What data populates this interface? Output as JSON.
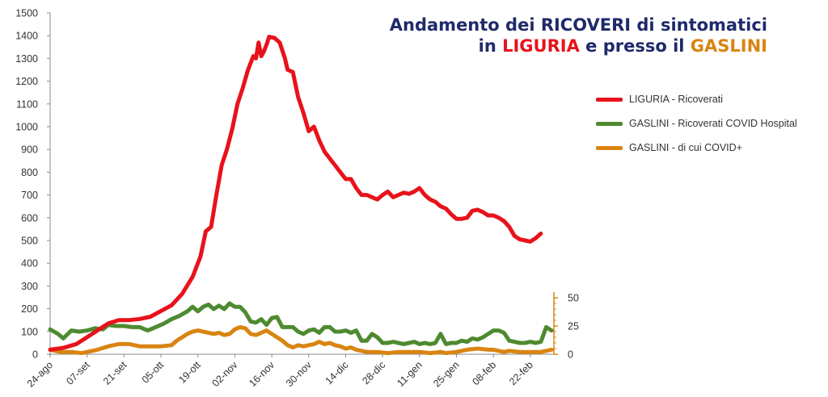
{
  "title": {
    "line1": "Andamento dei RICOVERI di sintomatici",
    "line2_a": "in ",
    "line2_b": "LIGURIA",
    "line2_c": " e presso il ",
    "line2_d": "GASLINI"
  },
  "colors": {
    "liguria": "#e8121b",
    "gaslini": "#4e8a2f",
    "covid": "#d98512",
    "title": "#1f2a6b"
  },
  "chart_data": {
    "type": "line",
    "title": "Andamento dei RICOVERI di sintomatici in LIGURIA e presso il GASLINI",
    "x_tick_labels": [
      "24-ago",
      "07-set",
      "21-set",
      "05-ott",
      "19-ott",
      "02-nov",
      "16-nov",
      "30-nov",
      "14-dic",
      "28-dic",
      "11-gen",
      "25-gen",
      "08-feb",
      "22-feb"
    ],
    "x_tick_days": [
      0,
      14,
      28,
      42,
      56,
      70,
      84,
      98,
      112,
      126,
      140,
      154,
      168,
      182
    ],
    "x_range": [
      0,
      190
    ],
    "left_axis": {
      "ylim": [
        0,
        1500
      ],
      "ticks": [
        0,
        100,
        200,
        300,
        400,
        500,
        600,
        700,
        800,
        900,
        1000,
        1100,
        1200,
        1300,
        1400,
        1500
      ]
    },
    "right_axis": {
      "ylim": [
        0,
        55
      ],
      "ticks": [
        0,
        25,
        50
      ]
    },
    "legend_position": "right",
    "series": [
      {
        "name": "LIGURIA - Ricoverati",
        "axis": "left",
        "color": "#e8121b",
        "points": [
          [
            0,
            20
          ],
          [
            5,
            28
          ],
          [
            10,
            45
          ],
          [
            14,
            75
          ],
          [
            18,
            105
          ],
          [
            22,
            135
          ],
          [
            26,
            150
          ],
          [
            30,
            150
          ],
          [
            34,
            155
          ],
          [
            38,
            165
          ],
          [
            42,
            190
          ],
          [
            46,
            215
          ],
          [
            50,
            265
          ],
          [
            54,
            340
          ],
          [
            57,
            430
          ],
          [
            59,
            540
          ],
          [
            61,
            560
          ],
          [
            63,
            700
          ],
          [
            65,
            830
          ],
          [
            67,
            900
          ],
          [
            69,
            990
          ],
          [
            71,
            1100
          ],
          [
            73,
            1170
          ],
          [
            75,
            1250
          ],
          [
            77,
            1310
          ],
          [
            78,
            1300
          ],
          [
            79,
            1370
          ],
          [
            80,
            1310
          ],
          [
            81,
            1330
          ],
          [
            82,
            1360
          ],
          [
            83,
            1395
          ],
          [
            85,
            1390
          ],
          [
            87,
            1370
          ],
          [
            89,
            1300
          ],
          [
            90,
            1250
          ],
          [
            92,
            1240
          ],
          [
            94,
            1130
          ],
          [
            96,
            1060
          ],
          [
            98,
            980
          ],
          [
            100,
            1000
          ],
          [
            102,
            940
          ],
          [
            104,
            890
          ],
          [
            106,
            860
          ],
          [
            108,
            830
          ],
          [
            110,
            800
          ],
          [
            112,
            770
          ],
          [
            114,
            770
          ],
          [
            116,
            730
          ],
          [
            118,
            700
          ],
          [
            120,
            700
          ],
          [
            122,
            690
          ],
          [
            124,
            680
          ],
          [
            126,
            700
          ],
          [
            128,
            715
          ],
          [
            130,
            690
          ],
          [
            132,
            700
          ],
          [
            134,
            710
          ],
          [
            136,
            705
          ],
          [
            138,
            715
          ],
          [
            140,
            730
          ],
          [
            142,
            700
          ],
          [
            144,
            680
          ],
          [
            146,
            670
          ],
          [
            148,
            650
          ],
          [
            150,
            640
          ],
          [
            152,
            615
          ],
          [
            154,
            595
          ],
          [
            156,
            595
          ],
          [
            158,
            600
          ],
          [
            160,
            630
          ],
          [
            162,
            635
          ],
          [
            164,
            625
          ],
          [
            166,
            610
          ],
          [
            168,
            610
          ],
          [
            170,
            600
          ],
          [
            172,
            585
          ],
          [
            174,
            560
          ],
          [
            176,
            520
          ],
          [
            178,
            505
          ],
          [
            180,
            500
          ],
          [
            182,
            495
          ],
          [
            184,
            510
          ],
          [
            186,
            530
          ]
        ]
      },
      {
        "name": "GASLINI - Ricoverati COVID Hospital",
        "axis": "right",
        "color": "#4e8a2f",
        "points": [
          [
            0,
            22
          ],
          [
            3,
            18
          ],
          [
            5,
            14
          ],
          [
            8,
            21
          ],
          [
            11,
            20
          ],
          [
            14,
            21
          ],
          [
            17,
            23
          ],
          [
            20,
            22
          ],
          [
            22,
            26
          ],
          [
            25,
            25
          ],
          [
            28,
            25
          ],
          [
            31,
            24
          ],
          [
            34,
            24
          ],
          [
            37,
            21
          ],
          [
            40,
            24
          ],
          [
            43,
            27
          ],
          [
            46,
            31
          ],
          [
            49,
            34
          ],
          [
            52,
            38
          ],
          [
            54,
            42
          ],
          [
            56,
            38
          ],
          [
            58,
            42
          ],
          [
            60,
            44
          ],
          [
            62,
            40
          ],
          [
            64,
            43
          ],
          [
            66,
            40
          ],
          [
            68,
            45
          ],
          [
            70,
            42
          ],
          [
            72,
            42
          ],
          [
            74,
            37
          ],
          [
            76,
            29
          ],
          [
            78,
            28
          ],
          [
            80,
            31
          ],
          [
            82,
            26
          ],
          [
            84,
            32
          ],
          [
            86,
            33
          ],
          [
            88,
            24
          ],
          [
            90,
            24
          ],
          [
            92,
            24
          ],
          [
            94,
            20
          ],
          [
            96,
            18
          ],
          [
            98,
            21
          ],
          [
            100,
            22
          ],
          [
            102,
            19
          ],
          [
            104,
            24
          ],
          [
            106,
            24
          ],
          [
            108,
            20
          ],
          [
            110,
            20
          ],
          [
            112,
            21
          ],
          [
            114,
            19
          ],
          [
            116,
            21
          ],
          [
            118,
            12
          ],
          [
            120,
            12
          ],
          [
            122,
            18
          ],
          [
            124,
            15
          ],
          [
            126,
            10
          ],
          [
            128,
            10
          ],
          [
            130,
            11
          ],
          [
            132,
            10
          ],
          [
            134,
            9
          ],
          [
            136,
            10
          ],
          [
            138,
            11
          ],
          [
            140,
            9
          ],
          [
            142,
            10
          ],
          [
            144,
            9
          ],
          [
            146,
            10
          ],
          [
            148,
            18
          ],
          [
            150,
            9
          ],
          [
            152,
            10
          ],
          [
            154,
            10
          ],
          [
            156,
            12
          ],
          [
            158,
            11
          ],
          [
            160,
            14
          ],
          [
            162,
            13
          ],
          [
            164,
            15
          ],
          [
            166,
            18
          ],
          [
            168,
            21
          ],
          [
            170,
            21
          ],
          [
            172,
            19
          ],
          [
            174,
            12
          ],
          [
            176,
            11
          ],
          [
            178,
            10
          ],
          [
            180,
            10
          ],
          [
            182,
            11
          ],
          [
            184,
            10
          ],
          [
            186,
            11
          ],
          [
            188,
            24
          ],
          [
            190,
            21
          ]
        ]
      },
      {
        "name": "GASLINI - di cui COVID+",
        "axis": "right",
        "color": "#d98512",
        "points": [
          [
            0,
            4
          ],
          [
            4,
            2
          ],
          [
            8,
            2
          ],
          [
            12,
            1
          ],
          [
            14,
            2
          ],
          [
            18,
            4
          ],
          [
            22,
            7
          ],
          [
            26,
            9
          ],
          [
            30,
            9
          ],
          [
            34,
            7
          ],
          [
            38,
            7
          ],
          [
            42,
            7
          ],
          [
            46,
            8
          ],
          [
            48,
            12
          ],
          [
            50,
            15
          ],
          [
            52,
            18
          ],
          [
            54,
            20
          ],
          [
            56,
            21
          ],
          [
            58,
            20
          ],
          [
            60,
            19
          ],
          [
            62,
            18
          ],
          [
            64,
            19
          ],
          [
            66,
            17
          ],
          [
            68,
            18
          ],
          [
            70,
            22
          ],
          [
            72,
            24
          ],
          [
            74,
            23
          ],
          [
            76,
            18
          ],
          [
            78,
            17
          ],
          [
            80,
            19
          ],
          [
            82,
            21
          ],
          [
            84,
            18
          ],
          [
            86,
            15
          ],
          [
            88,
            12
          ],
          [
            90,
            8
          ],
          [
            92,
            6
          ],
          [
            94,
            8
          ],
          [
            96,
            7
          ],
          [
            98,
            8
          ],
          [
            100,
            9
          ],
          [
            102,
            11
          ],
          [
            104,
            9
          ],
          [
            106,
            10
          ],
          [
            108,
            8
          ],
          [
            110,
            7
          ],
          [
            112,
            5
          ],
          [
            114,
            6
          ],
          [
            116,
            4
          ],
          [
            118,
            3
          ],
          [
            120,
            2
          ],
          [
            124,
            2
          ],
          [
            128,
            1
          ],
          [
            132,
            2
          ],
          [
            136,
            2
          ],
          [
            140,
            2
          ],
          [
            144,
            1
          ],
          [
            148,
            2
          ],
          [
            150,
            1
          ],
          [
            154,
            2
          ],
          [
            158,
            4
          ],
          [
            162,
            5
          ],
          [
            166,
            4
          ],
          [
            168,
            4
          ],
          [
            170,
            3
          ],
          [
            172,
            2
          ],
          [
            174,
            3
          ],
          [
            178,
            2
          ],
          [
            182,
            2
          ],
          [
            186,
            2
          ],
          [
            188,
            3
          ],
          [
            190,
            4
          ]
        ]
      }
    ]
  }
}
